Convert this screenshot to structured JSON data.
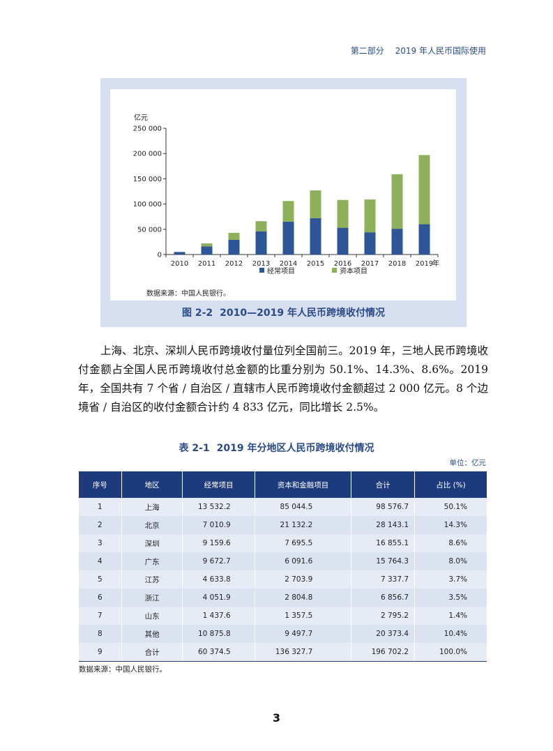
{
  "header": {
    "section": "第二部分",
    "title": "2019 年人民币国际使用"
  },
  "figure": {
    "number": "图 2-2",
    "caption": "2010—2019 年人民币跨境收付情况",
    "source": "数据来源：中国人民银行。"
  },
  "chart_data": {
    "type": "bar",
    "stacked": true,
    "ylabel": "亿元",
    "xlabel": "年",
    "categories": [
      "2010",
      "2011",
      "2012",
      "2013",
      "2014",
      "2015",
      "2016",
      "2017",
      "2018",
      "2019"
    ],
    "ylim": [
      0,
      250000
    ],
    "yticks": [
      0,
      50000,
      100000,
      150000,
      200000,
      250000
    ],
    "ytick_labels": [
      "0",
      "50 000",
      "100 000",
      "150 000",
      "200 000",
      "250 000"
    ],
    "series": [
      {
        "name": "经常项目",
        "color": "#2e5597",
        "values": [
          5000,
          16000,
          29000,
          46000,
          65000,
          72000,
          53000,
          44000,
          51000,
          60000
        ]
      },
      {
        "name": "资本项目",
        "color": "#8db15a",
        "values": [
          0,
          6000,
          14000,
          20000,
          41000,
          55000,
          55000,
          65000,
          108000,
          137000
        ]
      }
    ],
    "legend_position": "bottom"
  },
  "paragraph": "上海、北京、深圳人民币跨境收付量位列全国前三。2019 年，三地人民币跨境收付金额占全国人民币跨境收付总金额的比重分别为 50.1%、14.3%、8.6%。2019 年，全国共有 7 个省 / 自治区 / 直辖市人民币跨境收付金额超过 2 000 亿元。8 个边境省 / 自治区的收付金额合计约 4 833 亿元，同比增长 2.5%。",
  "table": {
    "number": "表 2-1",
    "title": "2019 年分地区人民币跨境收付情况",
    "unit": "单位：亿元",
    "headers": [
      "序号",
      "地区",
      "经常项目",
      "资本和金融项目",
      "合计",
      "占比 (%)"
    ],
    "rows": [
      [
        "1",
        "上海",
        "13 532.2",
        "85 044.5",
        "98 576.7",
        "50.1%"
      ],
      [
        "2",
        "北京",
        "7 010.9",
        "21 132.2",
        "28 143.1",
        "14.3%"
      ],
      [
        "3",
        "深圳",
        "9 159.6",
        "7 695.5",
        "16 855.1",
        "8.6%"
      ],
      [
        "4",
        "广东",
        "9 672.7",
        "6 091.6",
        "15 764.3",
        "8.0%"
      ],
      [
        "5",
        "江苏",
        "4 633.8",
        "2 703.9",
        "7 337.7",
        "3.7%"
      ],
      [
        "6",
        "浙江",
        "4 051.9",
        "2 804.8",
        "6 856.7",
        "3.5%"
      ],
      [
        "7",
        "山东",
        "1 437.6",
        "1 357.5",
        "2 795.2",
        "1.4%"
      ],
      [
        "8",
        "其他",
        "10 875.8",
        "9 497.7",
        "20 373.4",
        "10.4%"
      ],
      [
        "9",
        "合计",
        "60 374.5",
        "136 327.7",
        "196 702.2",
        "100.0%"
      ]
    ],
    "source": "数据来源：中国人民银行。"
  },
  "page_number": "3"
}
